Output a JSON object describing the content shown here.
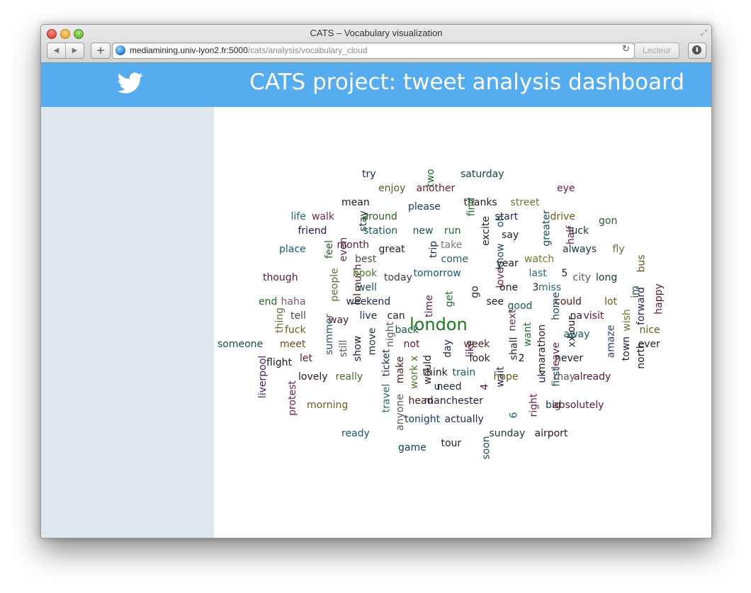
{
  "window": {
    "title": "CATS – Vocabulary visualization",
    "url_host": "mediamining.univ-lyon2.fr:5000",
    "url_path": "/cats/analysis/vocabulary_cloud",
    "reader_label": "Lecteur",
    "nav_back": "◀",
    "nav_forward": "▶",
    "new_tab": "+",
    "reload": "↻",
    "fullscreen": "⤢"
  },
  "header": {
    "title": "CATS project: tweet analysis dashboard",
    "icon": "twitter-bird-icon",
    "color": "#55acee"
  },
  "sidebar": {
    "color": "#dfe6ee"
  },
  "word_cloud": [
    {
      "text": "try",
      "color": "#1a2a5a"
    },
    {
      "text": "two",
      "color": "#1f6a2a"
    },
    {
      "text": "saturday",
      "color": "#0a4a3a"
    },
    {
      "text": "enjoy",
      "color": "#5a5a2a"
    },
    {
      "text": "another",
      "color": "#6a1a2a"
    },
    {
      "text": "eye",
      "color": "#6a1a5a"
    },
    {
      "text": "mean",
      "color": "#2a1a1a"
    },
    {
      "text": "thanks",
      "color": "#2a1a1a"
    },
    {
      "text": "street",
      "color": "#6a7a2a"
    },
    {
      "text": "please",
      "color": "#1a3a5a"
    },
    {
      "text": "find",
      "color": "#1f6a2a"
    },
    {
      "text": "life",
      "color": "#1a6a6a"
    },
    {
      "text": "walk",
      "color": "#6a2a4a"
    },
    {
      "text": "stay",
      "color": "#1a3a2a"
    },
    {
      "text": "around",
      "color": "#2a5a2a"
    },
    {
      "text": "start",
      "color": "#1a2a4a"
    },
    {
      "text": "drive",
      "color": "#6a5a1a"
    },
    {
      "text": "gon",
      "color": "#2a5a2a"
    },
    {
      "text": "friend",
      "color": "#2a1a4a"
    },
    {
      "text": "station",
      "color": "#1a5a5a"
    },
    {
      "text": "new",
      "color": "#1a5a3a"
    },
    {
      "text": "run",
      "color": "#1f6a2a"
    },
    {
      "text": "excite",
      "color": "#2a1a1a"
    },
    {
      "text": "oh",
      "color": "#1a4a5a"
    },
    {
      "text": "say",
      "color": "#2a1a1a"
    },
    {
      "text": "greater",
      "color": "#1a4a4a"
    },
    {
      "text": "half",
      "color": "#6a1a4a"
    },
    {
      "text": "luck",
      "color": "#1a3a2a"
    },
    {
      "text": "place",
      "color": "#1a5a6a"
    },
    {
      "text": "feel",
      "color": "#2a5a2a"
    },
    {
      "text": "even",
      "color": "#5a2a4a"
    },
    {
      "text": "month",
      "color": "#5a1a2a"
    },
    {
      "text": "great",
      "color": "#2a1a1a"
    },
    {
      "text": "trip",
      "color": "#1a2a4a"
    },
    {
      "text": "take",
      "color": "#7a7a7a"
    },
    {
      "text": "know",
      "color": "#1a4a5a"
    },
    {
      "text": "always",
      "color": "#1a3a2a"
    },
    {
      "text": "fly",
      "color": "#6a6a3a"
    },
    {
      "text": "best",
      "color": "#4a4a4a"
    },
    {
      "text": "come",
      "color": "#2a5a6a"
    },
    {
      "text": "year",
      "color": "#1a1a1a"
    },
    {
      "text": "watch",
      "color": "#6a7a2a"
    },
    {
      "text": "bus",
      "color": "#6a5a1a"
    },
    {
      "text": "people",
      "color": "#6a6a3a"
    },
    {
      "text": "much",
      "color": "#4a1a1a"
    },
    {
      "text": "though",
      "color": "#5a1a2a"
    },
    {
      "text": "book",
      "color": "#4a7a2a"
    },
    {
      "text": "today",
      "color": "#3a3a3a"
    },
    {
      "text": "tomorrow",
      "color": "#1a5a6a"
    },
    {
      "text": "love",
      "color": "#6a1a5a"
    },
    {
      "text": "last",
      "color": "#2a6a7a"
    },
    {
      "text": "5",
      "color": "#2a1a1a"
    },
    {
      "text": "city",
      "color": "#5a5a5a"
    },
    {
      "text": "long",
      "color": "#1a3a2a"
    },
    {
      "text": "lol",
      "color": "#3a1a1a"
    },
    {
      "text": "well",
      "color": "#1a4a5a"
    },
    {
      "text": "get",
      "color": "#1f6a2a"
    },
    {
      "text": "go",
      "color": "#2a1a1a"
    },
    {
      "text": "one",
      "color": "#1a1a1a"
    },
    {
      "text": "3",
      "color": "#1a1a1a"
    },
    {
      "text": "miss",
      "color": "#2a6a6a"
    },
    {
      "text": "im",
      "color": "#1a5a3a"
    },
    {
      "text": "end",
      "color": "#1f6a2a"
    },
    {
      "text": "haha",
      "color": "#7a5a5a"
    },
    {
      "text": "weekend",
      "color": "#1a2a4a"
    },
    {
      "text": "time",
      "color": "#6a1a4a"
    },
    {
      "text": "see",
      "color": "#1a1a1a"
    },
    {
      "text": "good",
      "color": "#1a5a4a"
    },
    {
      "text": "home",
      "color": "#1a4a5a"
    },
    {
      "text": "could",
      "color": "#4a1a1a"
    },
    {
      "text": "lot",
      "color": "#6a5a1a"
    },
    {
      "text": "forward",
      "color": "#2a1a4a"
    },
    {
      "text": "happy",
      "color": "#5a1a2a"
    },
    {
      "text": "thing",
      "color": "#6a6a3a"
    },
    {
      "text": "tell",
      "color": "#4a4a4a"
    },
    {
      "text": "way",
      "color": "#5a1a2a"
    },
    {
      "text": "live",
      "color": "#1a2a5a"
    },
    {
      "text": "can",
      "color": "#2a1a1a"
    },
    {
      "text": "london",
      "color": "#1a7a1a"
    },
    {
      "text": "next",
      "color": "#5a2a4a"
    },
    {
      "text": "na",
      "color": "#2a1a1a"
    },
    {
      "text": "visit",
      "color": "#5a1a2a"
    },
    {
      "text": "hour",
      "color": "#2a1a1a"
    },
    {
      "text": "wish",
      "color": "#6a7a2a"
    },
    {
      "text": "summer",
      "color": "#2a5a6a"
    },
    {
      "text": "night",
      "color": "#5a5a5a"
    },
    {
      "text": "back",
      "color": "#1a5a4a"
    },
    {
      "text": "want",
      "color": "#2a6a3a"
    },
    {
      "text": "nice",
      "color": "#6a5a1a"
    },
    {
      "text": "fuck",
      "color": "#6a5a1a"
    },
    {
      "text": "someone",
      "color": "#1a4a4a"
    },
    {
      "text": "meet",
      "color": "#6a4a1a"
    },
    {
      "text": "move",
      "color": "#1a3a2a"
    },
    {
      "text": "show",
      "color": "#1a1a2a"
    },
    {
      "text": "not",
      "color": "#5a1a2a"
    },
    {
      "text": "day",
      "color": "#1a2a4a"
    },
    {
      "text": "like",
      "color": "#5a1a4a"
    },
    {
      "text": "week",
      "color": "#4a1a1a"
    },
    {
      "text": "shall",
      "color": "#2a1a1a"
    },
    {
      "text": "marathon",
      "color": "#2a1a1a"
    },
    {
      "text": "xx",
      "color": "#1a3a2a"
    },
    {
      "text": "away",
      "color": "#1a5a5a"
    },
    {
      "text": "amaze",
      "color": "#2a3a6a"
    },
    {
      "text": "town",
      "color": "#1a1a2a"
    },
    {
      "text": "ever",
      "color": "#2a1a1a"
    },
    {
      "text": "still",
      "color": "#5a5a5a"
    },
    {
      "text": "let",
      "color": "#5a1a2a"
    },
    {
      "text": "x",
      "color": "#4a6a2a"
    },
    {
      "text": "look",
      "color": "#2a1a1a"
    },
    {
      "text": "2",
      "color": "#1a1a1a"
    },
    {
      "text": "leave",
      "color": "#6a1a4a"
    },
    {
      "text": "never",
      "color": "#1a1a1a"
    },
    {
      "text": "north",
      "color": "#1a1a1a"
    },
    {
      "text": "flight",
      "color": "#1a1a1a"
    },
    {
      "text": "liverpool",
      "color": "#4a1a6a"
    },
    {
      "text": "ticket",
      "color": "#1a2a4a"
    },
    {
      "text": "make",
      "color": "#4a1a1a"
    },
    {
      "text": "would",
      "color": "#2a1a1a"
    },
    {
      "text": "think",
      "color": "#1a1a1a"
    },
    {
      "text": "train",
      "color": "#1a5a4a"
    },
    {
      "text": "wait",
      "color": "#1a1a4a"
    },
    {
      "text": "uk",
      "color": "#1a1a4a"
    },
    {
      "text": "first",
      "color": "#1a4a5a"
    },
    {
      "text": "lovely",
      "color": "#2a1a1a"
    },
    {
      "text": "really",
      "color": "#4a6a2a"
    },
    {
      "text": "work",
      "color": "#4a7a2a"
    },
    {
      "text": "hope",
      "color": "#6a5a1a"
    },
    {
      "text": "may",
      "color": "#5a5a5a"
    },
    {
      "text": "already",
      "color": "#5a1a2a"
    },
    {
      "text": "u",
      "color": "#1a3a5a"
    },
    {
      "text": "need",
      "color": "#1a2a3a"
    },
    {
      "text": "4",
      "color": "#4a1a4a"
    },
    {
      "text": "protest",
      "color": "#6a1a5a"
    },
    {
      "text": "travel",
      "color": "#2a6a6a"
    },
    {
      "text": "head",
      "color": "#4a1a1a"
    },
    {
      "text": "manchester",
      "color": "#2a1a3a"
    },
    {
      "text": "right",
      "color": "#6a1a4a"
    },
    {
      "text": "morning",
      "color": "#6a5a1a"
    },
    {
      "text": "anyone",
      "color": "#5a5a5a"
    },
    {
      "text": "6",
      "color": "#1a5a6a"
    },
    {
      "text": "big",
      "color": "#1a3a5a"
    },
    {
      "text": "absolutely",
      "color": "#5a1a2a"
    },
    {
      "text": "tonight",
      "color": "#1a3a6a"
    },
    {
      "text": "actually",
      "color": "#1a2a4a"
    },
    {
      "text": "ready",
      "color": "#1a5a6a"
    },
    {
      "text": "sunday",
      "color": "#1a3a2a"
    },
    {
      "text": "airport",
      "color": "#2a1a1a"
    },
    {
      "text": "tour",
      "color": "#2a1a1a"
    },
    {
      "text": "game",
      "color": "#1a3a5a"
    },
    {
      "text": "soon",
      "color": "#1a4a5a"
    }
  ]
}
